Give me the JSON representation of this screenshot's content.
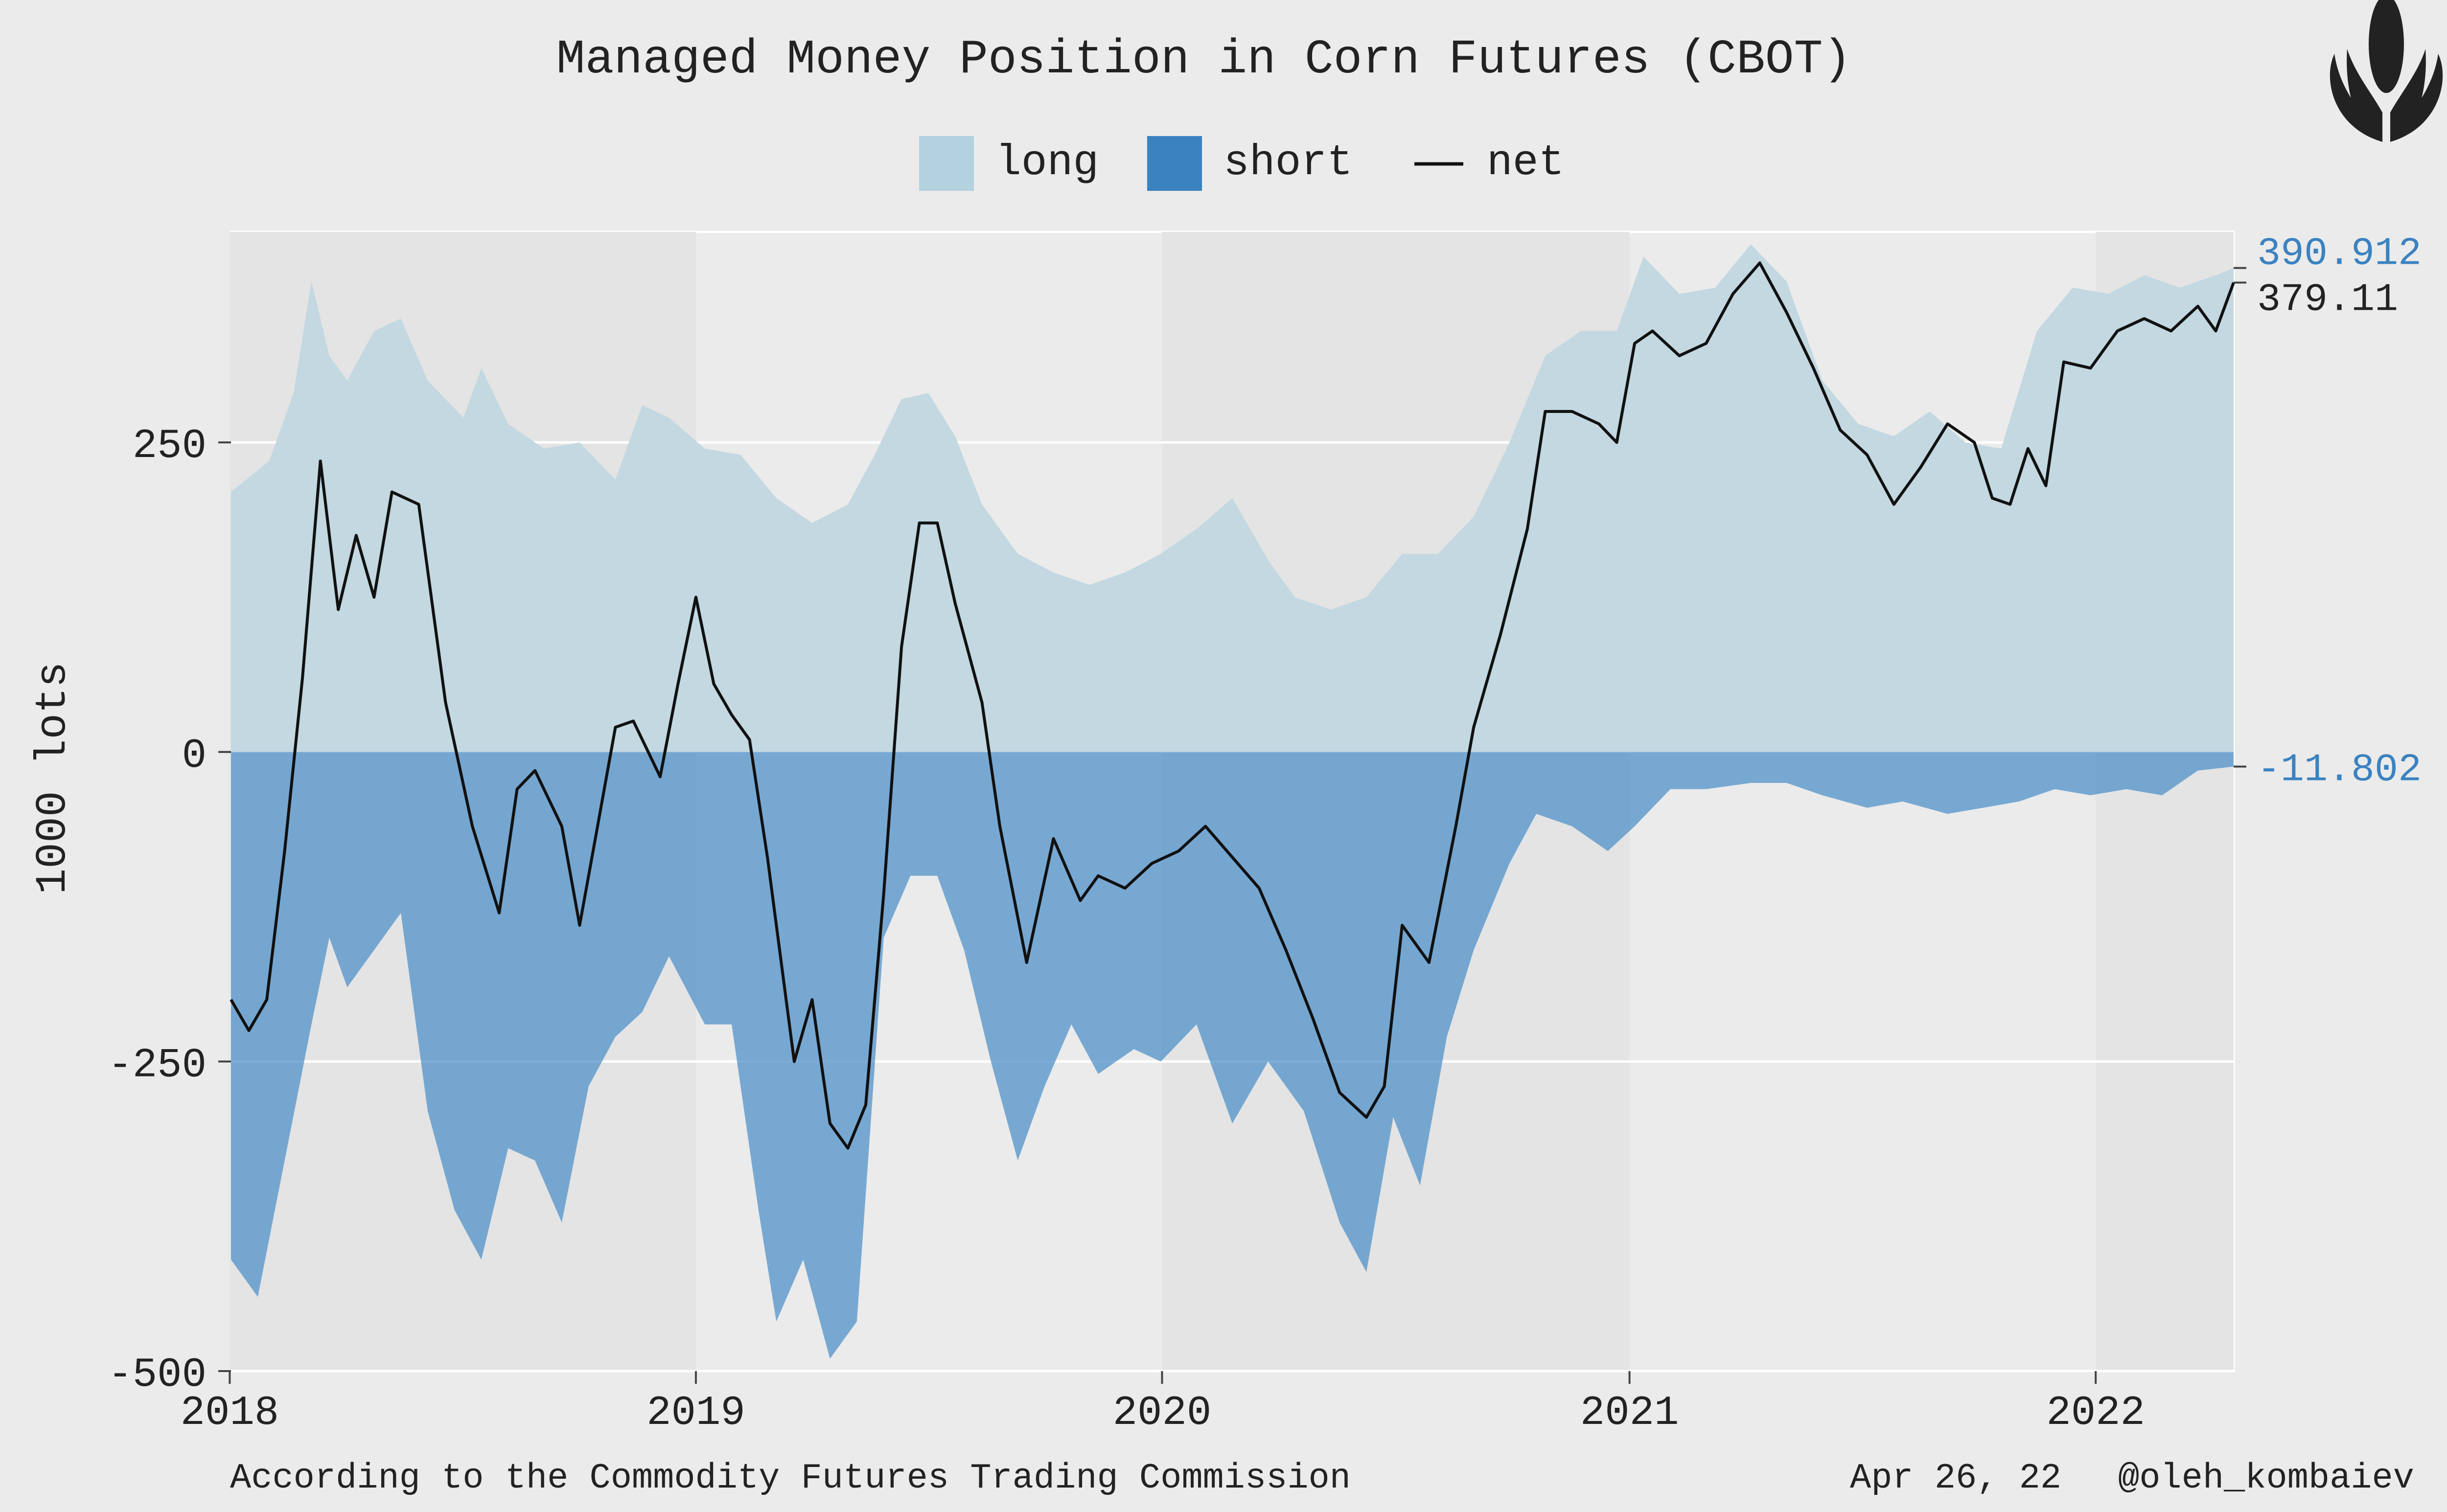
{
  "chart_data": {
    "type": "area",
    "title": "Managed Money Position in Corn Futures (CBOT)",
    "xlabel": "",
    "ylabel": "1000 lots",
    "ylim": [
      -500,
      420
    ],
    "xlim": [
      "2018-01-02",
      "2022-04-19"
    ],
    "yticks": [
      250,
      0,
      -250,
      -500
    ],
    "xticks": [
      {
        "label": "2018",
        "date": "2018-01-01"
      },
      {
        "label": "2019",
        "date": "2019-01-01"
      },
      {
        "label": "2020",
        "date": "2020-01-01"
      },
      {
        "label": "2021",
        "date": "2021-01-01"
      },
      {
        "label": "2022",
        "date": "2022-01-01"
      }
    ],
    "grid": true,
    "legend_position": "top-center",
    "legend": [
      {
        "label": "long",
        "kind": "area",
        "color": "#b3d1df"
      },
      {
        "label": "short",
        "kind": "area",
        "color": "#3b82c0"
      },
      {
        "label": "net",
        "kind": "line",
        "color": "#111111"
      }
    ],
    "series": [
      {
        "name": "long",
        "color": "#c3d8e1",
        "points": [
          [
            "2018-01-02",
            210
          ],
          [
            "2018-02-01",
            235
          ],
          [
            "2018-02-20",
            290
          ],
          [
            "2018-03-06",
            380
          ],
          [
            "2018-03-20",
            320
          ],
          [
            "2018-04-03",
            300
          ],
          [
            "2018-04-24",
            340
          ],
          [
            "2018-05-15",
            350
          ],
          [
            "2018-06-05",
            300
          ],
          [
            "2018-07-03",
            270
          ],
          [
            "2018-07-17",
            310
          ],
          [
            "2018-08-07",
            265
          ],
          [
            "2018-09-04",
            245
          ],
          [
            "2018-10-02",
            250
          ],
          [
            "2018-10-30",
            220
          ],
          [
            "2018-11-20",
            280
          ],
          [
            "2018-12-11",
            270
          ],
          [
            "2019-01-08",
            245
          ],
          [
            "2019-02-05",
            240
          ],
          [
            "2019-03-05",
            205
          ],
          [
            "2019-04-02",
            185
          ],
          [
            "2019-04-30",
            200
          ],
          [
            "2019-05-21",
            240
          ],
          [
            "2019-06-11",
            285
          ],
          [
            "2019-07-02",
            290
          ],
          [
            "2019-07-23",
            255
          ],
          [
            "2019-08-13",
            200
          ],
          [
            "2019-09-10",
            160
          ],
          [
            "2019-10-08",
            145
          ],
          [
            "2019-11-05",
            135
          ],
          [
            "2019-12-03",
            145
          ],
          [
            "2019-12-31",
            160
          ],
          [
            "2020-01-28",
            180
          ],
          [
            "2020-02-25",
            205
          ],
          [
            "2020-03-24",
            155
          ],
          [
            "2020-04-14",
            125
          ],
          [
            "2020-05-12",
            115
          ],
          [
            "2020-06-09",
            125
          ],
          [
            "2020-07-07",
            160
          ],
          [
            "2020-08-04",
            160
          ],
          [
            "2020-09-01",
            190
          ],
          [
            "2020-09-29",
            250
          ],
          [
            "2020-10-27",
            320
          ],
          [
            "2020-11-24",
            340
          ],
          [
            "2020-12-22",
            340
          ],
          [
            "2021-01-12",
            400
          ],
          [
            "2021-02-09",
            370
          ],
          [
            "2021-03-09",
            375
          ],
          [
            "2021-04-06",
            410
          ],
          [
            "2021-05-04",
            380
          ],
          [
            "2021-06-01",
            300
          ],
          [
            "2021-06-29",
            265
          ],
          [
            "2021-07-27",
            255
          ],
          [
            "2021-08-24",
            275
          ],
          [
            "2021-09-21",
            250
          ],
          [
            "2021-10-19",
            245
          ],
          [
            "2021-11-16",
            340
          ],
          [
            "2021-12-14",
            375
          ],
          [
            "2022-01-11",
            370
          ],
          [
            "2022-02-08",
            385
          ],
          [
            "2022-03-08",
            375
          ],
          [
            "2022-04-05",
            385
          ],
          [
            "2022-04-19",
            390.912
          ]
        ]
      },
      {
        "name": "short",
        "color": "#3b82c0",
        "points": [
          [
            "2018-01-02",
            -410
          ],
          [
            "2018-01-23",
            -440
          ],
          [
            "2018-02-13",
            -330
          ],
          [
            "2018-03-06",
            -220
          ],
          [
            "2018-03-20",
            -150
          ],
          [
            "2018-04-03",
            -190
          ],
          [
            "2018-04-24",
            -160
          ],
          [
            "2018-05-15",
            -130
          ],
          [
            "2018-06-05",
            -290
          ],
          [
            "2018-06-26",
            -370
          ],
          [
            "2018-07-17",
            -410
          ],
          [
            "2018-08-07",
            -320
          ],
          [
            "2018-08-28",
            -330
          ],
          [
            "2018-09-18",
            -380
          ],
          [
            "2018-10-09",
            -270
          ],
          [
            "2018-10-30",
            -230
          ],
          [
            "2018-11-20",
            -210
          ],
          [
            "2018-12-11",
            -165
          ],
          [
            "2019-01-08",
            -220
          ],
          [
            "2019-01-29",
            -220
          ],
          [
            "2019-02-19",
            -370
          ],
          [
            "2019-03-05",
            -460
          ],
          [
            "2019-03-26",
            -410
          ],
          [
            "2019-04-16",
            -490
          ],
          [
            "2019-05-07",
            -460
          ],
          [
            "2019-05-28",
            -150
          ],
          [
            "2019-06-18",
            -100
          ],
          [
            "2019-07-09",
            -100
          ],
          [
            "2019-07-30",
            -160
          ],
          [
            "2019-08-20",
            -250
          ],
          [
            "2019-09-10",
            -330
          ],
          [
            "2019-10-01",
            -270
          ],
          [
            "2019-10-22",
            -220
          ],
          [
            "2019-11-12",
            -260
          ],
          [
            "2019-12-10",
            -240
          ],
          [
            "2019-12-31",
            -250
          ],
          [
            "2020-01-28",
            -220
          ],
          [
            "2020-02-25",
            -300
          ],
          [
            "2020-03-24",
            -250
          ],
          [
            "2020-04-21",
            -290
          ],
          [
            "2020-05-19",
            -380
          ],
          [
            "2020-06-09",
            -420
          ],
          [
            "2020-06-30",
            -295
          ],
          [
            "2020-07-21",
            -350
          ],
          [
            "2020-08-11",
            -230
          ],
          [
            "2020-09-01",
            -160
          ],
          [
            "2020-09-29",
            -90
          ],
          [
            "2020-10-20",
            -50
          ],
          [
            "2020-11-17",
            -60
          ],
          [
            "2020-12-15",
            -80
          ],
          [
            "2021-01-05",
            -60
          ],
          [
            "2021-02-02",
            -30
          ],
          [
            "2021-03-02",
            -30
          ],
          [
            "2021-04-06",
            -25
          ],
          [
            "2021-05-04",
            -25
          ],
          [
            "2021-06-01",
            -35
          ],
          [
            "2021-07-06",
            -45
          ],
          [
            "2021-08-03",
            -40
          ],
          [
            "2021-09-07",
            -50
          ],
          [
            "2021-10-05",
            -45
          ],
          [
            "2021-11-02",
            -40
          ],
          [
            "2021-11-30",
            -30
          ],
          [
            "2021-12-28",
            -35
          ],
          [
            "2022-01-25",
            -30
          ],
          [
            "2022-02-22",
            -35
          ],
          [
            "2022-03-22",
            -15
          ],
          [
            "2022-04-19",
            -11.802
          ]
        ]
      },
      {
        "name": "net",
        "color": "#111111",
        "points": [
          [
            "2018-01-02",
            -200
          ],
          [
            "2018-01-16",
            -225
          ],
          [
            "2018-01-30",
            -200
          ],
          [
            "2018-02-13",
            -80
          ],
          [
            "2018-02-27",
            60
          ],
          [
            "2018-03-13",
            235
          ],
          [
            "2018-03-27",
            115
          ],
          [
            "2018-04-10",
            175
          ],
          [
            "2018-04-24",
            125
          ],
          [
            "2018-05-08",
            210
          ],
          [
            "2018-05-29",
            200
          ],
          [
            "2018-06-19",
            40
          ],
          [
            "2018-07-10",
            -60
          ],
          [
            "2018-07-31",
            -130
          ],
          [
            "2018-08-14",
            -30
          ],
          [
            "2018-08-28",
            -15
          ],
          [
            "2018-09-18",
            -60
          ],
          [
            "2018-10-02",
            -140
          ],
          [
            "2018-10-16",
            -60
          ],
          [
            "2018-10-30",
            20
          ],
          [
            "2018-11-13",
            25
          ],
          [
            "2018-12-04",
            -20
          ],
          [
            "2018-12-18",
            55
          ],
          [
            "2019-01-01",
            125
          ],
          [
            "2019-01-15",
            55
          ],
          [
            "2019-01-29",
            30
          ],
          [
            "2019-02-12",
            10
          ],
          [
            "2019-02-26",
            -85
          ],
          [
            "2019-03-19",
            -250
          ],
          [
            "2019-04-02",
            -200
          ],
          [
            "2019-04-16",
            -300
          ],
          [
            "2019-04-30",
            -320
          ],
          [
            "2019-05-14",
            -285
          ],
          [
            "2019-05-28",
            -115
          ],
          [
            "2019-06-11",
            85
          ],
          [
            "2019-06-25",
            185
          ],
          [
            "2019-07-09",
            185
          ],
          [
            "2019-07-23",
            120
          ],
          [
            "2019-08-13",
            40
          ],
          [
            "2019-08-27",
            -60
          ],
          [
            "2019-09-17",
            -170
          ],
          [
            "2019-10-08",
            -70
          ],
          [
            "2019-10-29",
            -120
          ],
          [
            "2019-11-12",
            -100
          ],
          [
            "2019-12-03",
            -110
          ],
          [
            "2019-12-24",
            -90
          ],
          [
            "2020-01-14",
            -80
          ],
          [
            "2020-02-04",
            -60
          ],
          [
            "2020-02-25",
            -85
          ],
          [
            "2020-03-17",
            -110
          ],
          [
            "2020-04-07",
            -160
          ],
          [
            "2020-04-28",
            -215
          ],
          [
            "2020-05-19",
            -275
          ],
          [
            "2020-06-09",
            -295
          ],
          [
            "2020-06-23",
            -270
          ],
          [
            "2020-07-07",
            -140
          ],
          [
            "2020-07-28",
            -170
          ],
          [
            "2020-08-18",
            -60
          ],
          [
            "2020-09-01",
            20
          ],
          [
            "2020-09-22",
            95
          ],
          [
            "2020-10-13",
            180
          ],
          [
            "2020-10-27",
            275
          ],
          [
            "2020-11-17",
            275
          ],
          [
            "2020-12-08",
            265
          ],
          [
            "2020-12-22",
            250
          ],
          [
            "2021-01-05",
            330
          ],
          [
            "2021-01-19",
            340
          ],
          [
            "2021-02-09",
            320
          ],
          [
            "2021-03-02",
            330
          ],
          [
            "2021-03-23",
            370
          ],
          [
            "2021-04-13",
            395
          ],
          [
            "2021-05-04",
            355
          ],
          [
            "2021-05-25",
            310
          ],
          [
            "2021-06-15",
            260
          ],
          [
            "2021-07-06",
            240
          ],
          [
            "2021-07-27",
            200
          ],
          [
            "2021-08-17",
            230
          ],
          [
            "2021-09-07",
            265
          ],
          [
            "2021-09-28",
            250
          ],
          [
            "2021-10-12",
            205
          ],
          [
            "2021-10-26",
            200
          ],
          [
            "2021-11-09",
            245
          ],
          [
            "2021-11-23",
            215
          ],
          [
            "2021-12-07",
            315
          ],
          [
            "2021-12-28",
            310
          ],
          [
            "2022-01-18",
            340
          ],
          [
            "2022-02-08",
            350
          ],
          [
            "2022-03-01",
            340
          ],
          [
            "2022-03-22",
            360
          ],
          [
            "2022-04-05",
            340
          ],
          [
            "2022-04-19",
            379.11
          ]
        ]
      }
    ],
    "end_labels": [
      {
        "label": "390.912",
        "series": "long",
        "color": "#3b82c0"
      },
      {
        "label": "379.11",
        "series": "net",
        "color": "#222222"
      },
      {
        "label": "-11.802",
        "series": "short",
        "color": "#3b82c0"
      }
    ],
    "footer_source": "According to the Commodity Futures Trading Commission",
    "footer_date": "Apr 26, 22",
    "footer_author": "@oleh_kombaiev",
    "logo_icon": "corn-icon"
  }
}
